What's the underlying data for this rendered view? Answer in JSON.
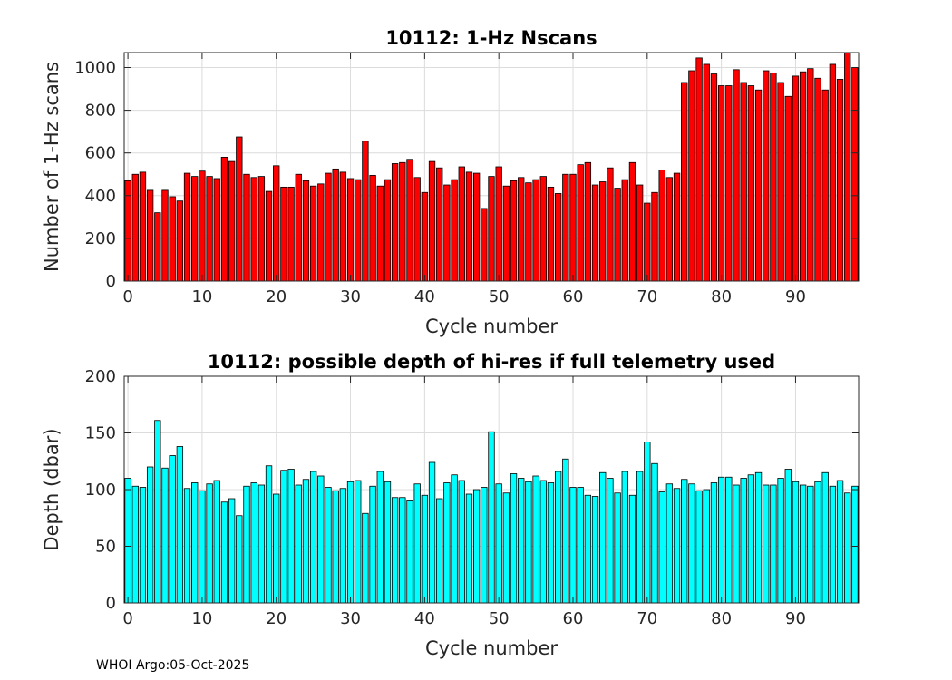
{
  "figure": {
    "footer": "WHOI Argo:05-Oct-2025"
  },
  "chart_data": [
    {
      "type": "bar",
      "title": "10112: 1-Hz Nscans",
      "xlabel": "Cycle number",
      "ylabel": "Number of 1-Hz scans",
      "xlim": [
        -0.5,
        98.5
      ],
      "ylim": [
        0,
        1070
      ],
      "xticks": [
        0,
        10,
        20,
        30,
        40,
        50,
        60,
        70,
        80,
        90
      ],
      "yticks": [
        0,
        200,
        400,
        600,
        800,
        1000
      ],
      "grid": true,
      "bar_color": "#ff0000",
      "x": [
        0,
        1,
        2,
        3,
        4,
        5,
        6,
        7,
        8,
        9,
        10,
        11,
        12,
        13,
        14,
        15,
        16,
        17,
        18,
        19,
        20,
        21,
        22,
        23,
        24,
        25,
        26,
        27,
        28,
        29,
        30,
        31,
        32,
        33,
        34,
        35,
        36,
        37,
        38,
        39,
        40,
        41,
        42,
        43,
        44,
        45,
        46,
        47,
        48,
        49,
        50,
        51,
        52,
        53,
        54,
        55,
        56,
        57,
        58,
        59,
        60,
        61,
        62,
        63,
        64,
        65,
        66,
        67,
        68,
        69,
        70,
        71,
        72,
        73,
        74,
        75,
        76,
        77,
        78,
        79,
        80,
        81,
        82,
        83,
        84,
        85,
        86,
        87,
        88,
        89,
        90,
        91,
        92,
        93,
        94,
        95,
        96,
        97,
        98
      ],
      "values": [
        470,
        500,
        510,
        425,
        320,
        425,
        395,
        375,
        505,
        490,
        515,
        490,
        480,
        580,
        560,
        675,
        500,
        485,
        490,
        420,
        540,
        440,
        440,
        500,
        470,
        445,
        455,
        505,
        525,
        510,
        480,
        475,
        655,
        495,
        445,
        475,
        550,
        555,
        570,
        485,
        415,
        560,
        530,
        450,
        475,
        535,
        510,
        505,
        340,
        490,
        535,
        445,
        470,
        485,
        460,
        475,
        490,
        440,
        410,
        500,
        500,
        545,
        555,
        450,
        465,
        530,
        435,
        475,
        555,
        450,
        365,
        415,
        520,
        485,
        505,
        930,
        985,
        1045,
        1015,
        970,
        915,
        915,
        990,
        930,
        915,
        895,
        985,
        975,
        930,
        865,
        960,
        980,
        995,
        950,
        895,
        1015,
        945,
        1070,
        1000
      ]
    },
    {
      "type": "bar",
      "title": "10112: possible depth of hi-res if full telemetry used",
      "xlabel": "Cycle number",
      "ylabel": "Depth (dbar)",
      "xlim": [
        -0.5,
        98.5
      ],
      "ylim": [
        0,
        200
      ],
      "xticks": [
        0,
        10,
        20,
        30,
        40,
        50,
        60,
        70,
        80,
        90
      ],
      "yticks": [
        0,
        50,
        100,
        150,
        200
      ],
      "grid": true,
      "bar_color": "#00ffff",
      "x": [
        0,
        1,
        2,
        3,
        4,
        5,
        6,
        7,
        8,
        9,
        10,
        11,
        12,
        13,
        14,
        15,
        16,
        17,
        18,
        19,
        20,
        21,
        22,
        23,
        24,
        25,
        26,
        27,
        28,
        29,
        30,
        31,
        32,
        33,
        34,
        35,
        36,
        37,
        38,
        39,
        40,
        41,
        42,
        43,
        44,
        45,
        46,
        47,
        48,
        49,
        50,
        51,
        52,
        53,
        54,
        55,
        56,
        57,
        58,
        59,
        60,
        61,
        62,
        63,
        64,
        65,
        66,
        67,
        68,
        69,
        70,
        71,
        72,
        73,
        74,
        75,
        76,
        77,
        78,
        79,
        80,
        81,
        82,
        83,
        84,
        85,
        86,
        87,
        88,
        89,
        90,
        91,
        92,
        93,
        94,
        95,
        96,
        97,
        98
      ],
      "values": [
        110,
        103,
        102,
        120,
        161,
        119,
        130,
        138,
        101,
        106,
        99,
        105,
        108,
        89,
        92,
        77,
        103,
        106,
        104,
        121,
        96,
        117,
        118,
        104,
        109,
        116,
        112,
        102,
        99,
        101,
        107,
        108,
        79,
        103,
        116,
        107,
        93,
        93,
        90,
        105,
        95,
        124,
        92,
        106,
        113,
        108,
        96,
        100,
        102,
        151,
        105,
        97,
        114,
        110,
        107,
        112,
        108,
        106,
        116,
        127,
        102,
        102,
        95,
        94,
        115,
        110,
        97,
        116,
        95,
        116,
        142,
        123,
        98,
        105,
        101,
        109,
        105,
        99,
        100,
        106,
        111,
        111,
        104,
        110,
        113,
        115,
        104,
        104,
        110,
        118,
        107,
        104,
        103,
        107,
        115,
        103,
        108,
        97,
        103
      ]
    }
  ]
}
